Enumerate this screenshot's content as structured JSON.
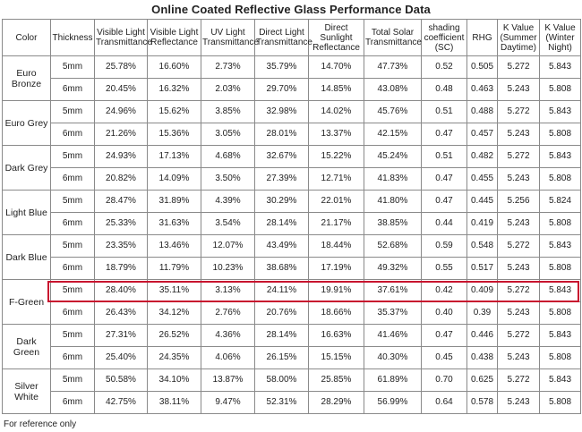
{
  "title": "Online Coated Reflective Glass Performance Data",
  "headers": [
    "Color",
    "Thickness",
    "Visible Light Transmittance",
    "Visible Light Reflectance",
    "UV Light Transmittance",
    "Direct Light Transmittance",
    "Direct Sunlight Reflectance",
    "Total Solar Transmittance",
    "shading coefficient (SC)",
    "RHG",
    "K Value (Summer Daytime)",
    "K Value (Winter Night)"
  ],
  "groups": [
    {
      "color": "Euro Bronze",
      "rows": [
        [
          "5mm",
          "25.78%",
          "16.60%",
          "2.73%",
          "35.79%",
          "14.70%",
          "47.73%",
          "0.52",
          "0.505",
          "5.272",
          "5.843"
        ],
        [
          "6mm",
          "20.45%",
          "16.32%",
          "2.03%",
          "29.70%",
          "14.85%",
          "43.08%",
          "0.48",
          "0.463",
          "5.243",
          "5.808"
        ]
      ]
    },
    {
      "color": "Euro Grey",
      "rows": [
        [
          "5mm",
          "24.96%",
          "15.62%",
          "3.85%",
          "32.98%",
          "14.02%",
          "45.76%",
          "0.51",
          "0.488",
          "5.272",
          "5.843"
        ],
        [
          "6mm",
          "21.26%",
          "15.36%",
          "3.05%",
          "28.01%",
          "13.37%",
          "42.15%",
          "0.47",
          "0.457",
          "5.243",
          "5.808"
        ]
      ]
    },
    {
      "color": "Dark Grey",
      "rows": [
        [
          "5mm",
          "24.93%",
          "17.13%",
          "4.68%",
          "32.67%",
          "15.22%",
          "45.24%",
          "0.51",
          "0.482",
          "5.272",
          "5.843"
        ],
        [
          "6mm",
          "20.82%",
          "14.09%",
          "3.50%",
          "27.39%",
          "12.71%",
          "41.83%",
          "0.47",
          "0.455",
          "5.243",
          "5.808"
        ]
      ]
    },
    {
      "color": "Light Blue",
      "rows": [
        [
          "5mm",
          "28.47%",
          "31.89%",
          "4.39%",
          "30.29%",
          "22.01%",
          "41.80%",
          "0.47",
          "0.445",
          "5.256",
          "5.824"
        ],
        [
          "6mm",
          "25.33%",
          "31.63%",
          "3.54%",
          "28.14%",
          "21.17%",
          "38.85%",
          "0.44",
          "0.419",
          "5.243",
          "5.808"
        ]
      ]
    },
    {
      "color": "Dark Blue",
      "rows": [
        [
          "5mm",
          "23.35%",
          "13.46%",
          "12.07%",
          "43.49%",
          "18.44%",
          "52.68%",
          "0.59",
          "0.548",
          "5.272",
          "5.843"
        ],
        [
          "6mm",
          "18.79%",
          "11.79%",
          "10.23%",
          "38.68%",
          "17.19%",
          "49.32%",
          "0.55",
          "0.517",
          "5.243",
          "5.808"
        ]
      ]
    },
    {
      "color": "F-Green",
      "rows": [
        [
          "5mm",
          "28.40%",
          "35.11%",
          "3.13%",
          "24.11%",
          "19.91%",
          "37.61%",
          "0.42",
          "0.409",
          "5.272",
          "5.843"
        ],
        [
          "6mm",
          "26.43%",
          "34.12%",
          "2.76%",
          "20.76%",
          "18.66%",
          "35.37%",
          "0.40",
          "0.39",
          "5.243",
          "5.808"
        ]
      ]
    },
    {
      "color": "Dark Green",
      "rows": [
        [
          "5mm",
          "27.31%",
          "26.52%",
          "4.36%",
          "28.14%",
          "16.63%",
          "41.46%",
          "0.47",
          "0.446",
          "5.272",
          "5.843"
        ],
        [
          "6mm",
          "25.40%",
          "24.35%",
          "4.06%",
          "26.15%",
          "15.15%",
          "40.30%",
          "0.45",
          "0.438",
          "5.243",
          "5.808"
        ]
      ]
    },
    {
      "color": "Silver White",
      "rows": [
        [
          "5mm",
          "50.58%",
          "34.10%",
          "13.87%",
          "58.00%",
          "25.85%",
          "61.89%",
          "0.70",
          "0.625",
          "5.272",
          "5.843"
        ],
        [
          "6mm",
          "42.75%",
          "38.11%",
          "9.47%",
          "52.31%",
          "28.29%",
          "56.99%",
          "0.64",
          "0.578",
          "5.243",
          "5.808"
        ]
      ]
    }
  ],
  "highlight_color": "#c8102e",
  "footnote": "For reference only"
}
